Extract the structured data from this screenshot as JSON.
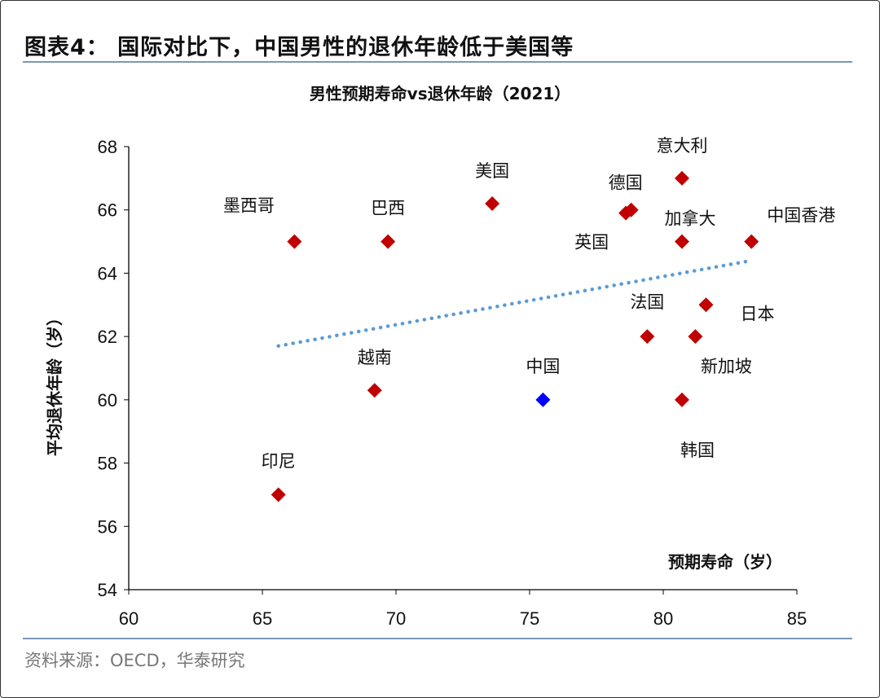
{
  "header": {
    "title": "图表4：  国际对比下，中国男性的退休年龄低于美国等"
  },
  "footer": {
    "source": "资料来源：OECD，华泰研究"
  },
  "chart_data": {
    "type": "scatter",
    "title": "男性预期寿命vs退休年龄（2021）",
    "xlabel": "预期寿命（岁）",
    "ylabel": "平均退休年龄（岁）",
    "xlim": [
      60,
      85
    ],
    "ylim": [
      54,
      68
    ],
    "xticks": [
      60,
      65,
      70,
      75,
      80,
      85
    ],
    "yticks": [
      54,
      56,
      58,
      60,
      62,
      64,
      66,
      68
    ],
    "grid": false,
    "colors": {
      "default": "#c00000",
      "highlight": "#0000ff",
      "trend": "#5b9bd5"
    },
    "points": [
      {
        "label": "墨西哥",
        "x": 66.2,
        "y": 65.0
      },
      {
        "label": "巴西",
        "x": 69.7,
        "y": 65.0
      },
      {
        "label": "美国",
        "x": 73.6,
        "y": 66.2
      },
      {
        "label": "德国",
        "x": 78.8,
        "y": 66.0
      },
      {
        "label": "英国",
        "x": 78.6,
        "y": 65.9
      },
      {
        "label": "意大利",
        "x": 80.7,
        "y": 67.0
      },
      {
        "label": "加拿大",
        "x": 80.7,
        "y": 65.0
      },
      {
        "label": "中国香港",
        "x": 83.3,
        "y": 65.0
      },
      {
        "label": "法国",
        "x": 79.4,
        "y": 62.0
      },
      {
        "label": "日本",
        "x": 81.6,
        "y": 63.0
      },
      {
        "label": "新加坡",
        "x": 81.2,
        "y": 62.0
      },
      {
        "label": "韩国",
        "x": 80.7,
        "y": 60.0
      },
      {
        "label": "中国",
        "x": 75.5,
        "y": 60.0,
        "highlight": true
      },
      {
        "label": "越南",
        "x": 69.2,
        "y": 60.3
      },
      {
        "label": "印尼",
        "x": 65.6,
        "y": 57.0
      }
    ],
    "trendline": {
      "style": "dotted",
      "from": [
        65.6,
        61.7
      ],
      "to": [
        83.3,
        64.4
      ]
    }
  }
}
